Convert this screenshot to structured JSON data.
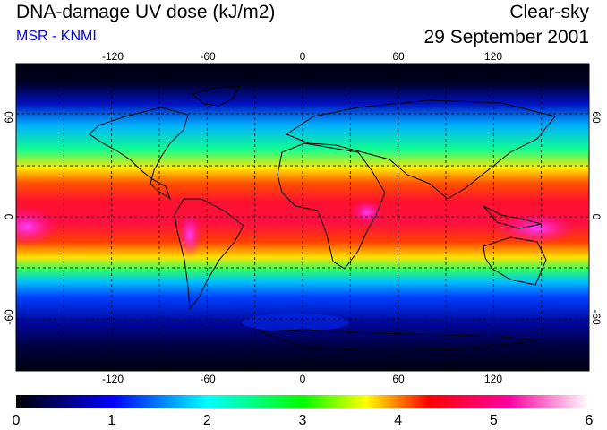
{
  "title": "DNA-damage UV dose (kJ/m2)",
  "subtitle": "MSR - KNMI",
  "sky_condition": "Clear-sky",
  "date": "29 September 2001",
  "colors": {
    "subtitle": "#0000ff"
  },
  "map": {
    "lon_ticks": [
      "-120",
      "-60",
      "0",
      "60",
      "120"
    ],
    "lat_ticks": [
      "60",
      "0",
      "-60"
    ]
  },
  "colorbar": {
    "labels": [
      "0",
      "1",
      "2",
      "3",
      "4",
      "5",
      "6"
    ],
    "stops": [
      "#000000",
      "#0000ff",
      "#00ffff",
      "#00ff00",
      "#ffff00",
      "#ff0000",
      "#ff00a0",
      "#ffffff"
    ]
  }
}
